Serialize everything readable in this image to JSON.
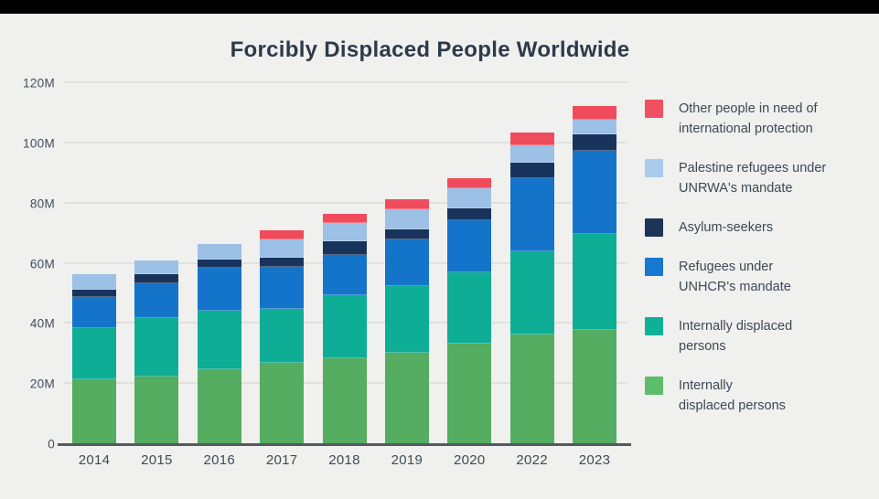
{
  "page": {
    "background_color": "#f0f0ee",
    "top_bar_color": "#000000"
  },
  "chart_data": {
    "type": "bar",
    "stacked": true,
    "title": "Forcibly Displaced People Worldwide",
    "unit": "millions of people",
    "categories": [
      "2014",
      "2015",
      "2016",
      "2017",
      "2018",
      "2019",
      "2020",
      "2022",
      "2023"
    ],
    "ylim": [
      0,
      120
    ],
    "grid": "horizontal",
    "legend_position": "right",
    "yticks": [
      {
        "value": 0,
        "label": "0"
      },
      {
        "value": 20,
        "label": "20M"
      },
      {
        "value": 40,
        "label": "40M"
      },
      {
        "value": 60,
        "label": "60M"
      },
      {
        "value": 80,
        "label": "80M"
      },
      {
        "value": 100,
        "label": "100M"
      },
      {
        "value": 120,
        "label": "120M"
      }
    ],
    "series": [
      {
        "name": "Internally displaced persons (green)",
        "color": "#54ad60",
        "values": [
          21.5,
          22.5,
          25,
          27,
          28.5,
          30.5,
          33.5,
          36.5,
          38
        ]
      },
      {
        "name": "Internally displaced persons (teal)",
        "color": "#0ead95",
        "values": [
          17,
          19.5,
          19.5,
          18,
          21,
          22,
          23.5,
          27.5,
          32
        ]
      },
      {
        "name": "Refugees under UNHCR's mandate",
        "color": "#1474ca",
        "values": [
          10.5,
          11.5,
          14,
          14,
          13.5,
          15.5,
          17.5,
          24.5,
          27.5
        ]
      },
      {
        "name": "Asylum-seekers",
        "color": "#19345c",
        "values": [
          2.5,
          3,
          3,
          3,
          4.5,
          3.5,
          4,
          5,
          5.5
        ]
      },
      {
        "name": "Palestine refugees under UNRWA's mandate",
        "color": "#9cc0e6",
        "values": [
          5,
          4.5,
          5,
          6,
          6,
          6.5,
          6.5,
          6,
          5
        ]
      },
      {
        "name": "Other people in need of international protection",
        "color": "#f04b5c",
        "values": [
          0,
          0,
          0,
          3,
          3,
          3.5,
          3.5,
          4,
          4.5
        ]
      }
    ]
  },
  "legend": {
    "items": [
      {
        "color": "#f0505f",
        "lines": [
          "Other people in need of",
          "international protection"
        ]
      },
      {
        "color": "#a9cbee",
        "lines": [
          "Palestine refugees under",
          "UNRWA's mandate"
        ]
      },
      {
        "color": "#1c3458",
        "lines": [
          "Asylum-seekers"
        ]
      },
      {
        "color": "#1778d1",
        "lines": [
          "Refugees under",
          "UNHCR's mandate"
        ]
      },
      {
        "color": "#10b097",
        "lines": [
          "Internally displaced",
          "persons"
        ]
      },
      {
        "color": "#5cbe6b",
        "lines": [
          "Internally",
          "displaced persons"
        ]
      }
    ]
  }
}
